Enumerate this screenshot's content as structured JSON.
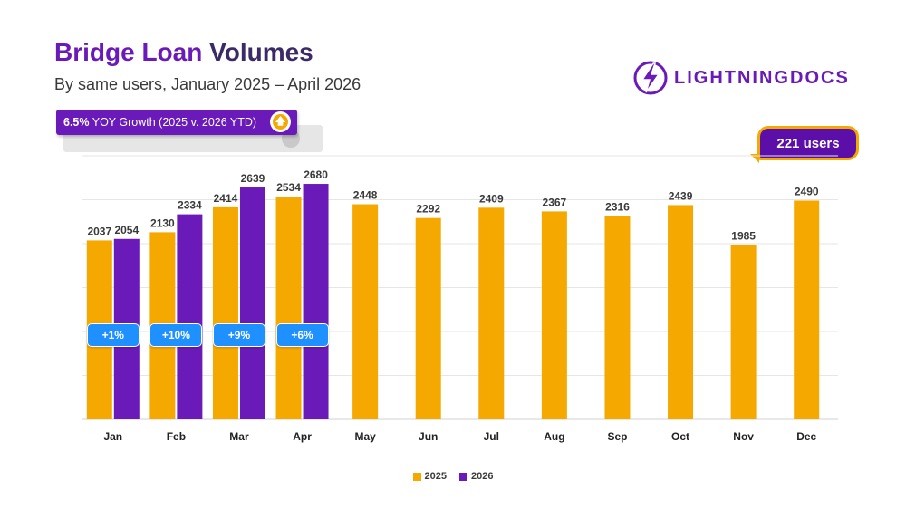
{
  "header": {
    "title_part1": "Bridge Loan",
    "title_part2": " Volumes",
    "subtitle": "By same users, January 2025 – April 2026"
  },
  "growth_badge": {
    "percent": "6.5%",
    "text": " YOY Growth (2025 v. 2026 YTD)",
    "arrow_icon": "arrow-up-icon"
  },
  "logo": {
    "part1": "LIGHTNING",
    "part2": "DOCS",
    "icon": "lightning-bolt-icon"
  },
  "users_badge": {
    "label": "221 users"
  },
  "colors": {
    "series_2025": "#f5a800",
    "series_2026": "#6a1ab8",
    "pill": "#1e90ff"
  },
  "chart_data": {
    "type": "bar",
    "categories": [
      "Jan",
      "Feb",
      "Mar",
      "Apr",
      "May",
      "Jun",
      "Jul",
      "Aug",
      "Sep",
      "Oct",
      "Nov",
      "Dec"
    ],
    "series": [
      {
        "name": "2025",
        "values": [
          2037,
          2130,
          2414,
          2534,
          2448,
          2292,
          2409,
          2367,
          2316,
          2439,
          1985,
          2490
        ]
      },
      {
        "name": "2026",
        "values": [
          2054,
          2334,
          2639,
          2680,
          null,
          null,
          null,
          null,
          null,
          null,
          null,
          null
        ]
      }
    ],
    "growth_labels": [
      "+1%",
      "+10%",
      "+9%",
      "+6%"
    ],
    "ylim": [
      0,
      3000
    ],
    "grid": true,
    "legend": "bottom-center",
    "title": "",
    "xlabel": "",
    "ylabel": ""
  }
}
